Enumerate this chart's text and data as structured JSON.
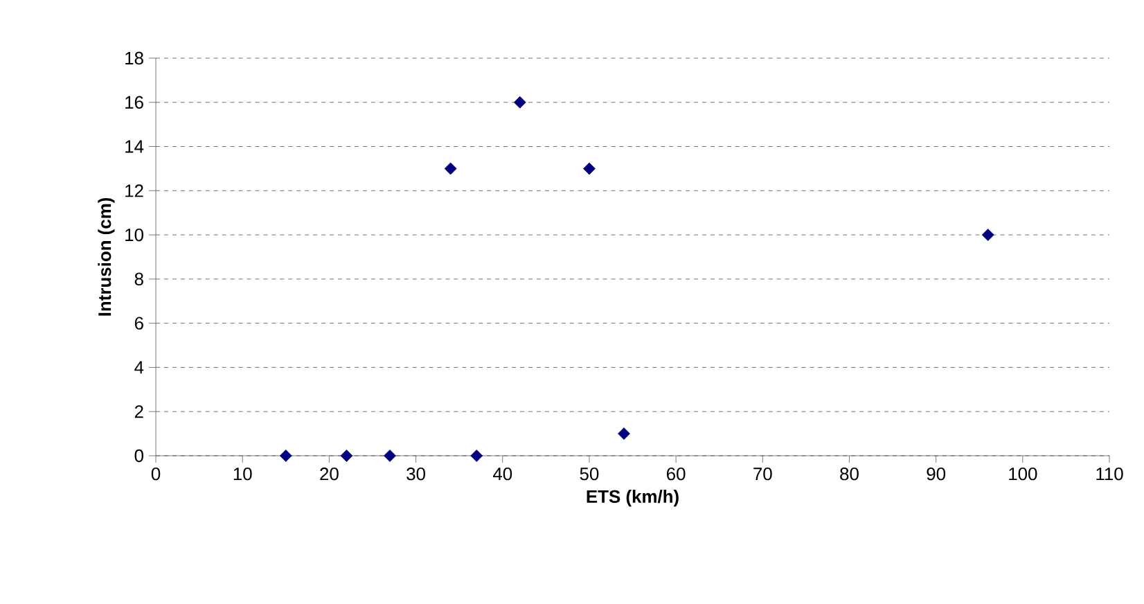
{
  "chart_data": {
    "type": "scatter",
    "xlabel": "ETS (km/h)",
    "ylabel": "Intrusion (cm)",
    "x": [
      15,
      22,
      27,
      34,
      37,
      42,
      50,
      54,
      96
    ],
    "values": [
      0,
      0,
      0,
      13,
      0,
      16,
      13,
      1,
      10
    ],
    "color": "#000080",
    "marker": "diamond",
    "grid": "y",
    "xlim": [
      0,
      110
    ],
    "xticks": [
      0,
      10,
      20,
      30,
      40,
      50,
      60,
      70,
      80,
      90,
      100,
      110
    ],
    "ylim": [
      0,
      18
    ],
    "yticks": [
      0,
      2,
      4,
      6,
      8,
      10,
      12,
      14,
      16,
      18
    ]
  }
}
